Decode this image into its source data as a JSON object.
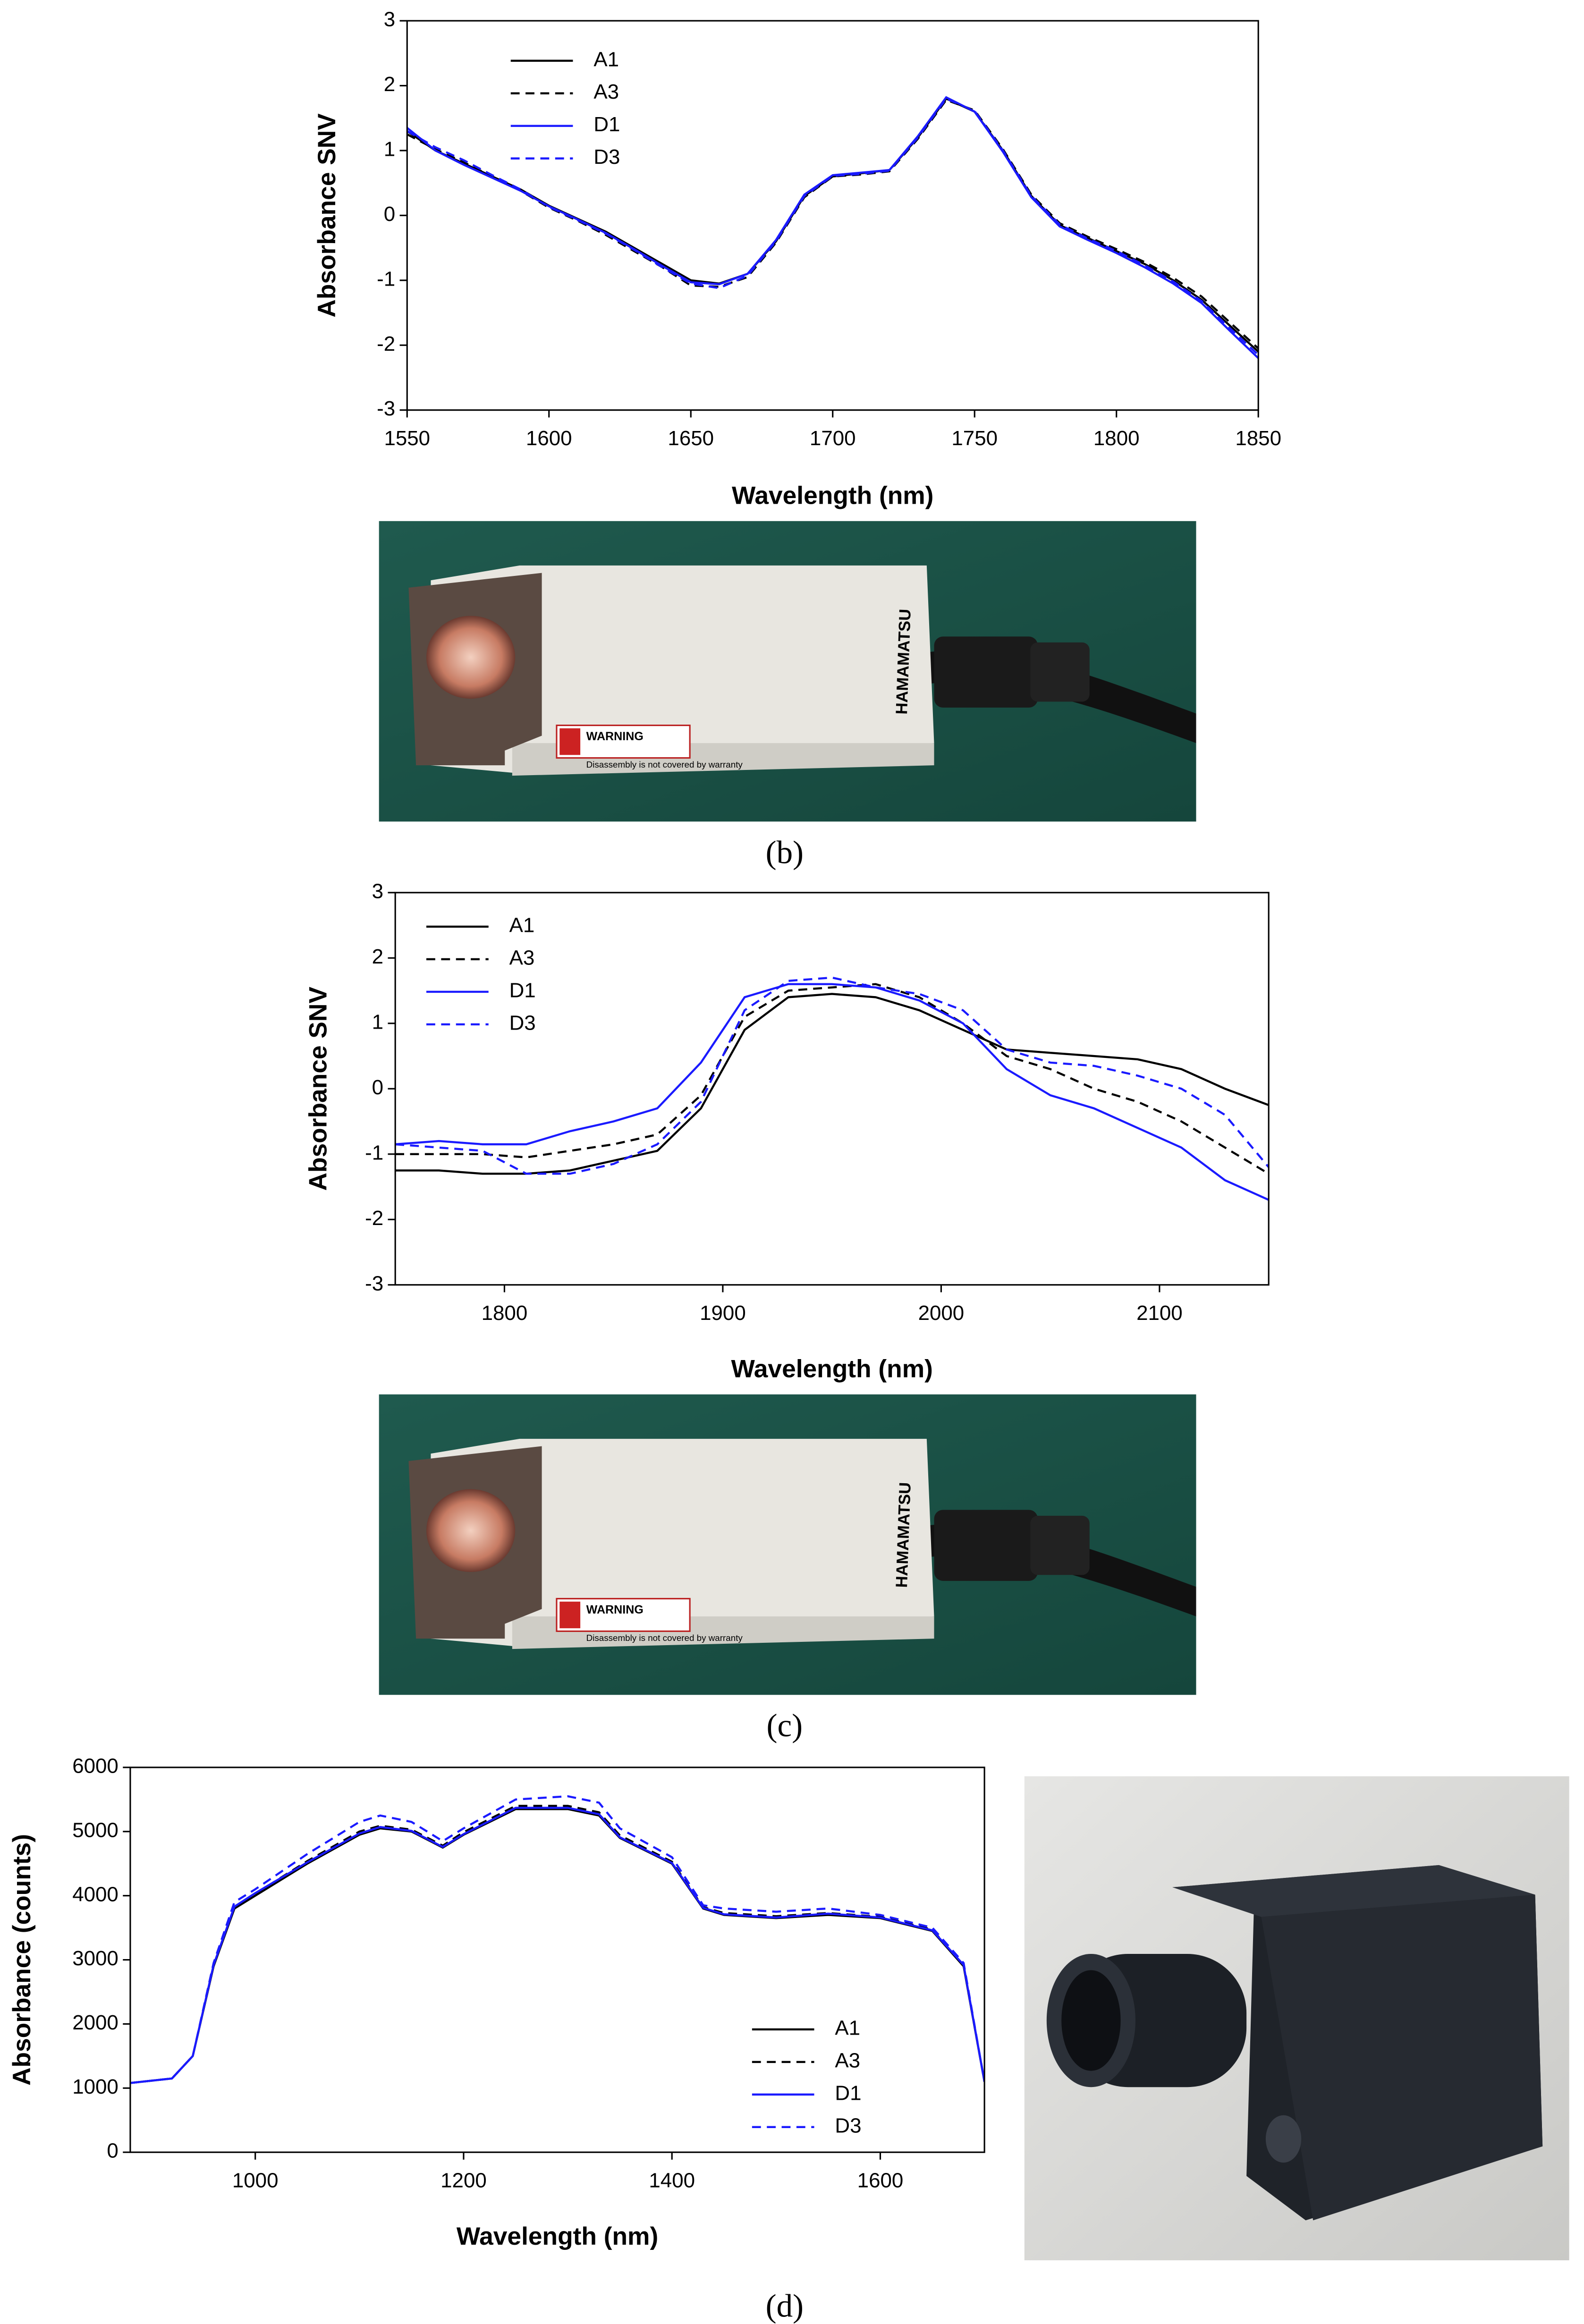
{
  "chart_data": [
    {
      "type": "line",
      "ylabel": "Absorbance SNV",
      "xlabel": "Wavelength (nm)",
      "legend": "upper left",
      "xlim": [
        1550,
        1850
      ],
      "xticks": [
        1550,
        1600,
        1650,
        1700,
        1750,
        1800,
        1850
      ],
      "ylim": [
        -3,
        3
      ],
      "yticks": [
        -3,
        -2,
        -1,
        0,
        1,
        2,
        3
      ],
      "x": [
        1550,
        1560,
        1570,
        1580,
        1590,
        1600,
        1610,
        1620,
        1630,
        1640,
        1650,
        1660,
        1670,
        1680,
        1690,
        1700,
        1710,
        1720,
        1730,
        1740,
        1750,
        1760,
        1770,
        1780,
        1790,
        1800,
        1810,
        1820,
        1830,
        1840,
        1850
      ],
      "series": [
        {
          "name": "A1",
          "color": "#000000",
          "dash": false,
          "values": [
            1.3,
            1.0,
            0.8,
            0.6,
            0.4,
            0.15,
            -0.05,
            -0.25,
            -0.5,
            -0.75,
            -1.0,
            -1.05,
            -0.9,
            -0.4,
            0.3,
            0.6,
            0.65,
            0.7,
            1.2,
            1.8,
            1.6,
            1.0,
            0.3,
            -0.15,
            -0.35,
            -0.55,
            -0.75,
            -1.0,
            -1.3,
            -1.7,
            -2.1
          ]
        },
        {
          "name": "A3",
          "color": "#000000",
          "dash": true,
          "values": [
            1.25,
            1.02,
            0.82,
            0.6,
            0.38,
            0.12,
            -0.08,
            -0.3,
            -0.55,
            -0.8,
            -1.08,
            -1.1,
            -0.95,
            -0.42,
            0.28,
            0.6,
            0.63,
            0.68,
            1.18,
            1.78,
            1.62,
            1.02,
            0.32,
            -0.12,
            -0.33,
            -0.52,
            -0.72,
            -0.96,
            -1.25,
            -1.65,
            -2.05
          ]
        },
        {
          "name": "D1",
          "color": "#1a1aff",
          "dash": false,
          "values": [
            1.35,
            1.0,
            0.78,
            0.58,
            0.38,
            0.14,
            -0.06,
            -0.27,
            -0.52,
            -0.78,
            -1.03,
            -1.06,
            -0.9,
            -0.38,
            0.32,
            0.62,
            0.66,
            0.7,
            1.22,
            1.82,
            1.6,
            0.98,
            0.28,
            -0.17,
            -0.38,
            -0.58,
            -0.8,
            -1.05,
            -1.35,
            -1.78,
            -2.2
          ]
        },
        {
          "name": "D3",
          "color": "#1a1aff",
          "dash": true,
          "values": [
            1.3,
            1.05,
            0.85,
            0.62,
            0.4,
            0.13,
            -0.07,
            -0.28,
            -0.53,
            -0.8,
            -1.05,
            -1.12,
            -0.93,
            -0.4,
            0.3,
            0.61,
            0.64,
            0.69,
            1.2,
            1.8,
            1.61,
            1.0,
            0.3,
            -0.14,
            -0.36,
            -0.55,
            -0.77,
            -1.02,
            -1.32,
            -1.74,
            -2.15
          ]
        }
      ]
    },
    {
      "type": "line",
      "ylabel": "Absorbance SNV",
      "xlabel": "Wavelength (nm)",
      "legend": "upper left",
      "xlim": [
        1750,
        2150
      ],
      "xticks": [
        1800,
        1900,
        2000,
        2100
      ],
      "ylim": [
        -3,
        3
      ],
      "yticks": [
        -3,
        -2,
        -1,
        0,
        1,
        2,
        3
      ],
      "x": [
        1750,
        1770,
        1790,
        1810,
        1830,
        1850,
        1870,
        1890,
        1910,
        1930,
        1950,
        1970,
        1990,
        2010,
        2030,
        2050,
        2070,
        2090,
        2110,
        2130,
        2150
      ],
      "series": [
        {
          "name": "A1",
          "color": "#000000",
          "dash": false,
          "values": [
            -1.25,
            -1.25,
            -1.3,
            -1.3,
            -1.25,
            -1.1,
            -0.95,
            -0.3,
            0.9,
            1.4,
            1.45,
            1.4,
            1.2,
            0.9,
            0.6,
            0.55,
            0.5,
            0.45,
            0.3,
            0.0,
            -0.25
          ]
        },
        {
          "name": "A3",
          "color": "#000000",
          "dash": true,
          "values": [
            -1.0,
            -1.0,
            -1.0,
            -1.05,
            -0.95,
            -0.85,
            -0.7,
            -0.1,
            1.1,
            1.5,
            1.55,
            1.6,
            1.4,
            1.0,
            0.5,
            0.3,
            0.0,
            -0.2,
            -0.5,
            -0.9,
            -1.3
          ]
        },
        {
          "name": "D1",
          "color": "#1a1aff",
          "dash": false,
          "values": [
            -0.85,
            -0.8,
            -0.85,
            -0.85,
            -0.65,
            -0.5,
            -0.3,
            0.4,
            1.4,
            1.6,
            1.6,
            1.55,
            1.35,
            1.0,
            0.3,
            -0.1,
            -0.3,
            -0.6,
            -0.9,
            -1.4,
            -1.7
          ]
        },
        {
          "name": "D3",
          "color": "#1a1aff",
          "dash": true,
          "values": [
            -0.85,
            -0.9,
            -0.95,
            -1.3,
            -1.3,
            -1.15,
            -0.85,
            -0.2,
            1.2,
            1.65,
            1.7,
            1.55,
            1.45,
            1.2,
            0.6,
            0.4,
            0.35,
            0.2,
            0.0,
            -0.4,
            -1.2
          ]
        }
      ]
    },
    {
      "type": "line",
      "ylabel": "Absorbance (counts)",
      "xlabel": "Wavelength (nm)",
      "legend": "lower right",
      "xlim": [
        880,
        1700
      ],
      "xticks": [
        1000,
        1200,
        1400,
        1600
      ],
      "ylim": [
        0,
        6000
      ],
      "yticks": [
        0,
        1000,
        2000,
        3000,
        4000,
        5000,
        6000
      ],
      "x": [
        880,
        920,
        940,
        960,
        980,
        1000,
        1050,
        1100,
        1120,
        1150,
        1180,
        1200,
        1250,
        1300,
        1330,
        1350,
        1400,
        1430,
        1450,
        1500,
        1550,
        1600,
        1650,
        1680,
        1700
      ],
      "series": [
        {
          "name": "A1",
          "color": "#000000",
          "dash": false,
          "values": [
            1080,
            1150,
            1500,
            2900,
            3800,
            4000,
            4500,
            4950,
            5050,
            5000,
            4750,
            4950,
            5350,
            5350,
            5250,
            4900,
            4500,
            3800,
            3700,
            3650,
            3700,
            3650,
            3450,
            2900,
            1100
          ]
        },
        {
          "name": "A3",
          "color": "#000000",
          "dash": true,
          "values": [
            1080,
            1150,
            1500,
            2910,
            3820,
            4030,
            4540,
            5000,
            5090,
            5030,
            4780,
            4990,
            5400,
            5400,
            5300,
            4940,
            4530,
            3820,
            3730,
            3680,
            3730,
            3670,
            3470,
            2910,
            1100
          ]
        },
        {
          "name": "D1",
          "color": "#1a1aff",
          "dash": false,
          "values": [
            1080,
            1150,
            1500,
            2920,
            3830,
            4040,
            4520,
            4970,
            5070,
            5010,
            4760,
            4960,
            5370,
            5370,
            5270,
            4910,
            4510,
            3810,
            3710,
            3660,
            3720,
            3660,
            3460,
            2920,
            1100
          ]
        },
        {
          "name": "D3",
          "color": "#1a1aff",
          "dash": true,
          "values": [
            1080,
            1150,
            1500,
            2950,
            3900,
            4100,
            4650,
            5150,
            5250,
            5150,
            4850,
            5050,
            5500,
            5550,
            5450,
            5050,
            4600,
            3850,
            3800,
            3750,
            3800,
            3700,
            3500,
            2950,
            1100
          ]
        }
      ]
    }
  ],
  "captions": [
    "(b)",
    "(c)",
    "(d)"
  ],
  "photo_texts": {
    "brand": "HAMAMATSU",
    "warning": "WARNING",
    "notice": "Disassembly is not covered by warranty"
  }
}
